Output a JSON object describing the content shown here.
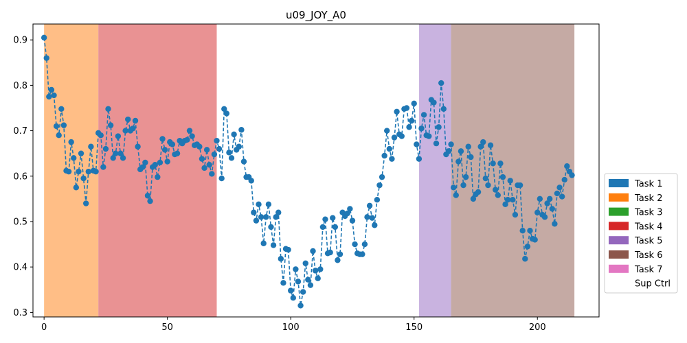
{
  "chart_data": {
    "type": "line",
    "title": "u09_JOY_A0",
    "xlabel": "",
    "ylabel": "",
    "xlim": [
      -4.5,
      225
    ],
    "ylim": [
      0.29,
      0.935
    ],
    "x_ticks": [
      0,
      50,
      100,
      150,
      200
    ],
    "y_ticks": [
      0.3,
      0.4,
      0.5,
      0.6,
      0.7,
      0.8,
      0.9
    ],
    "grid": false,
    "legend_position": "right",
    "series_color": "#1f77b4",
    "line_style": "dashed",
    "marker": "circle",
    "shaded_regions": [
      {
        "task": "Task 2",
        "x_start": 0,
        "x_end": 22,
        "color": "#ffbe86"
      },
      {
        "task": "Task 4",
        "x_start": 22,
        "x_end": 70,
        "color": "#e99293"
      },
      {
        "task": "Task 5",
        "x_start": 152,
        "x_end": 165,
        "color": "#c9b3e0"
      },
      {
        "task": "Task 6",
        "x_start": 165,
        "x_end": 215,
        "color": "#c5aaa4"
      }
    ],
    "legend": [
      {
        "label": "Task 1",
        "color": "#1f77b4"
      },
      {
        "label": "Task 2",
        "color": "#ff7f0e"
      },
      {
        "label": "Task 3",
        "color": "#2ca02c"
      },
      {
        "label": "Task 4",
        "color": "#d62728"
      },
      {
        "label": "Task 5",
        "color": "#9467bd"
      },
      {
        "label": "Task 6",
        "color": "#8c564b"
      },
      {
        "label": "Task 7",
        "color": "#e377c2"
      },
      {
        "label": "Sup Ctrl",
        "color": "#ffffff"
      }
    ],
    "y": [
      0.905,
      0.86,
      0.775,
      0.79,
      0.778,
      0.71,
      0.69,
      0.748,
      0.712,
      0.612,
      0.61,
      0.675,
      0.64,
      0.575,
      0.61,
      0.65,
      0.595,
      0.54,
      0.61,
      0.665,
      0.612,
      0.61,
      0.695,
      0.69,
      0.62,
      0.66,
      0.748,
      0.712,
      0.64,
      0.65,
      0.688,
      0.65,
      0.64,
      0.7,
      0.725,
      0.7,
      0.705,
      0.722,
      0.665,
      0.615,
      0.62,
      0.63,
      0.557,
      0.545,
      0.62,
      0.625,
      0.598,
      0.63,
      0.682,
      0.658,
      0.632,
      0.675,
      0.67,
      0.648,
      0.65,
      0.678,
      0.672,
      0.678,
      0.68,
      0.7,
      0.688,
      0.668,
      0.67,
      0.665,
      0.638,
      0.618,
      0.658,
      0.625,
      0.605,
      0.648,
      0.678,
      0.66,
      0.595,
      0.748,
      0.738,
      0.652,
      0.64,
      0.692,
      0.658,
      0.665,
      0.702,
      0.632,
      0.598,
      0.598,
      0.59,
      0.52,
      0.502,
      0.538,
      0.51,
      0.452,
      0.51,
      0.538,
      0.488,
      0.448,
      0.51,
      0.52,
      0.418,
      0.365,
      0.44,
      0.438,
      0.348,
      0.332,
      0.395,
      0.368,
      0.315,
      0.345,
      0.408,
      0.372,
      0.36,
      0.435,
      0.392,
      0.375,
      0.395,
      0.488,
      0.505,
      0.43,
      0.432,
      0.508,
      0.488,
      0.415,
      0.428,
      0.52,
      0.512,
      0.518,
      0.528,
      0.502,
      0.45,
      0.43,
      0.428,
      0.428,
      0.45,
      0.51,
      0.535,
      0.508,
      0.492,
      0.548,
      0.58,
      0.598,
      0.645,
      0.7,
      0.66,
      0.638,
      0.685,
      0.742,
      0.692,
      0.688,
      0.748,
      0.75,
      0.708,
      0.722,
      0.76,
      0.67,
      0.638,
      0.705,
      0.735,
      0.69,
      0.688,
      0.768,
      0.762,
      0.672,
      0.708,
      0.805,
      0.748,
      0.648,
      0.655,
      0.67,
      0.575,
      0.558,
      0.632,
      0.655,
      0.58,
      0.598,
      0.665,
      0.642,
      0.55,
      0.56,
      0.565,
      0.665,
      0.675,
      0.595,
      0.58,
      0.668,
      0.628,
      0.57,
      0.558,
      0.628,
      0.598,
      0.538,
      0.548,
      0.59,
      0.548,
      0.515,
      0.58,
      0.58,
      0.48,
      0.418,
      0.445,
      0.48,
      0.462,
      0.46,
      0.52,
      0.55,
      0.515,
      0.51,
      0.54,
      0.55,
      0.528,
      0.495,
      0.562,
      0.575,
      0.555,
      0.592,
      0.622,
      0.61,
      0.602
    ]
  }
}
